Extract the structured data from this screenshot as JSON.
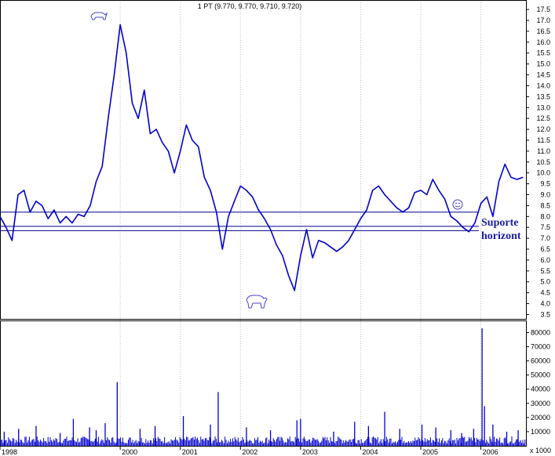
{
  "chart_data": [
    {
      "type": "line",
      "title": "1 PT (9.770, 9.770, 9.710, 9.720)",
      "y_ticks": [
        "17.5",
        "17.0",
        "16.5",
        "16.0",
        "15.5",
        "15.0",
        "14.5",
        "14.0",
        "13.5",
        "13.0",
        "12.5",
        "12.0",
        "11.5",
        "11.0",
        "10.5",
        "10.0",
        "9.5",
        "9.0",
        "8.5",
        "8.0",
        "7.5",
        "7.0",
        "6.5",
        "6.0",
        "5.5",
        "5.0",
        "4.5",
        "4.0",
        "3.5"
      ],
      "ylim": [
        3.3,
        17.9
      ],
      "x_ticks": [
        "1998",
        "2000",
        "2001",
        "2002",
        "2003",
        "2004",
        "2005",
        "2006"
      ],
      "xlim": [
        1998.0,
        2006.75
      ],
      "grid": "vertical",
      "colors": {
        "price": "#0000cc",
        "lines": "#00008b",
        "text": "#1a1aa8"
      },
      "series": [
        {
          "x": [
            1998.0,
            1998.1,
            1998.2,
            1998.3,
            1998.4,
            1998.5,
            1998.6,
            1998.7,
            1998.8,
            1998.9,
            1999.0,
            1999.1,
            1999.2,
            1999.3,
            1999.4,
            1999.5,
            1999.6,
            1999.7,
            1999.8,
            1999.9,
            2000.0,
            2000.1,
            2000.2,
            2000.3,
            2000.4,
            2000.5,
            2000.6,
            2000.7,
            2000.8,
            2000.9,
            2001.0,
            2001.1,
            2001.2,
            2001.3,
            2001.4,
            2001.5,
            2001.6,
            2001.7,
            2001.8,
            2001.9,
            2002.0,
            2002.1,
            2002.2,
            2002.3,
            2002.4,
            2002.5,
            2002.6,
            2002.7,
            2002.8,
            2002.9,
            2003.0,
            2003.1,
            2003.2,
            2003.3,
            2003.4,
            2003.5,
            2003.6,
            2003.7,
            2003.8,
            2003.9,
            2004.0,
            2004.1,
            2004.2,
            2004.3,
            2004.4,
            2004.5,
            2004.6,
            2004.7,
            2004.8,
            2004.9,
            2005.0,
            2005.1,
            2005.2,
            2005.3,
            2005.4,
            2005.5,
            2005.6,
            2005.7,
            2005.8,
            2005.9,
            2006.0,
            2006.1,
            2006.2,
            2006.3,
            2006.4,
            2006.5,
            2006.6,
            2006.7
          ],
          "values": [
            8.0,
            7.5,
            6.9,
            9.0,
            9.2,
            8.2,
            8.7,
            8.5,
            7.9,
            8.3,
            7.7,
            8.0,
            7.7,
            8.1,
            8.0,
            8.5,
            9.6,
            10.3,
            12.5,
            14.5,
            16.8,
            15.5,
            13.2,
            12.5,
            13.8,
            11.8,
            12.0,
            11.4,
            11.0,
            10.0,
            11.0,
            12.2,
            11.5,
            11.2,
            9.8,
            9.2,
            8.2,
            6.5,
            8.0,
            8.7,
            9.4,
            9.2,
            8.9,
            8.3,
            7.9,
            7.4,
            6.7,
            6.2,
            5.3,
            4.6,
            6.2,
            7.4,
            6.1,
            6.9,
            6.8,
            6.6,
            6.4,
            6.6,
            6.9,
            7.4,
            7.9,
            8.3,
            9.2,
            9.4,
            9.0,
            8.7,
            8.4,
            8.2,
            8.4,
            9.1,
            9.2,
            9.0,
            9.7,
            9.2,
            8.8,
            8.0,
            7.8,
            7.5,
            7.3,
            7.7,
            8.6,
            8.9,
            8.0,
            9.6,
            10.4,
            9.8,
            9.7,
            9.8
          ]
        }
      ],
      "h_lines": [
        8.2,
        7.55,
        7.35
      ],
      "annotations": [
        "Suporte",
        "horizont"
      ]
    },
    {
      "type": "bar",
      "y_ticks": [
        "80000",
        "70000",
        "60000",
        "50000",
        "40000",
        "30000",
        "20000",
        "10000"
      ],
      "ylim": [
        0,
        88000
      ],
      "unit_label": "x 1000",
      "x": [
        1998.07,
        1998.31,
        1998.6,
        1999.0,
        1999.22,
        1999.49,
        1999.6,
        1999.75,
        1999.95,
        2000.33,
        2000.58,
        2001.05,
        2001.5,
        2001.63,
        2002.1,
        2002.5,
        2002.94,
        2003.0,
        2003.55,
        2003.9,
        2004.13,
        2004.4,
        2004.65,
        2005.02,
        2005.25,
        2005.5,
        2005.68,
        2005.88,
        2006.02,
        2006.06,
        2006.2,
        2006.43,
        2006.62
      ],
      "values": [
        10000,
        12000,
        14000,
        9000,
        19000,
        13000,
        11000,
        16000,
        45000,
        12000,
        14000,
        21000,
        15000,
        38000,
        13000,
        11000,
        18000,
        19000,
        10000,
        17000,
        14000,
        24000,
        12000,
        15000,
        13000,
        11000,
        9000,
        12000,
        83000,
        28000,
        15000,
        10000,
        11000
      ]
    }
  ]
}
